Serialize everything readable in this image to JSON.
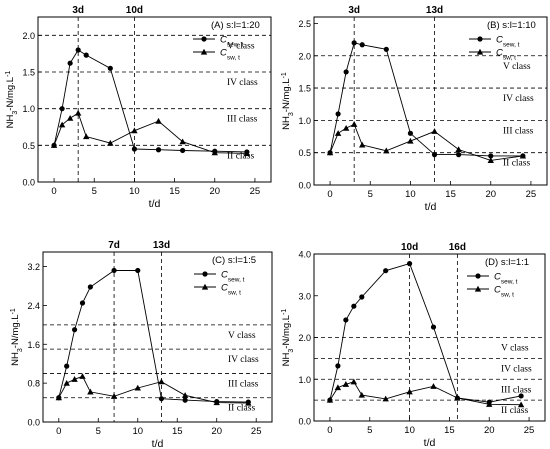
{
  "chart_data": [
    {
      "type": "line",
      "panel_label": "(A) s:l=1:20",
      "xlabel": "t/d",
      "ylabel": "NH",
      "ylabel_sub": "3",
      "ylabel_rest": "-N/mg.L",
      "ylabel_sup": "-1",
      "xlim": [
        -2,
        27
      ],
      "ylim": [
        0,
        2.25
      ],
      "xticks": [
        0,
        5,
        10,
        15,
        20,
        25
      ],
      "yticks": [
        0.0,
        0.5,
        1.0,
        1.5,
        2.0
      ],
      "ytick_labels": [
        "0.0",
        "0.5",
        "1.0",
        "1.5",
        "2.0"
      ],
      "vlines": [
        {
          "x": 3,
          "label": "3d"
        },
        {
          "x": 10,
          "label": "10d"
        }
      ],
      "hlines": [
        {
          "y": 2.0,
          "label": "V  class"
        },
        {
          "y": 1.5,
          "label": "IV class"
        },
        {
          "y": 1.0,
          "label": "III class"
        },
        {
          "y": 0.5,
          "label": "II  class"
        }
      ],
      "legend": [
        {
          "name": "C",
          "sub": "sew, t",
          "marker": "circle"
        },
        {
          "name": "C",
          "sub": "sw, t",
          "marker": "triangle"
        }
      ],
      "series": [
        {
          "name": "C_sew,t",
          "marker": "circle",
          "x": [
            0,
            1,
            2,
            3,
            4,
            7,
            10,
            13,
            16,
            20,
            24
          ],
          "y": [
            0.5,
            1.0,
            1.62,
            1.8,
            1.73,
            1.55,
            0.45,
            0.44,
            0.43,
            0.42,
            0.41
          ]
        },
        {
          "name": "C_sw,t",
          "marker": "triangle",
          "x": [
            0,
            1,
            2,
            3,
            4,
            7,
            10,
            13,
            16,
            20,
            24
          ],
          "y": [
            0.5,
            0.78,
            0.87,
            0.94,
            0.62,
            0.53,
            0.7,
            0.83,
            0.55,
            0.4,
            0.39
          ]
        }
      ]
    },
    {
      "type": "line",
      "panel_label": "(B) s:l=1:10",
      "xlabel": "t/d",
      "ylabel": "NH",
      "ylabel_sub": "3",
      "ylabel_rest": "-N/mg.L",
      "ylabel_sup": "-1",
      "xlim": [
        -2,
        27
      ],
      "ylim": [
        0,
        2.6
      ],
      "xticks": [
        0,
        5,
        10,
        15,
        20,
        25
      ],
      "yticks": [
        0.0,
        0.5,
        1.0,
        1.5,
        2.0,
        2.5
      ],
      "ytick_labels": [
        "0.0",
        "0.5",
        "1.0",
        "1.5",
        "2.0",
        "2.5"
      ],
      "vlines": [
        {
          "x": 3,
          "label": "3d"
        },
        {
          "x": 13,
          "label": "13d"
        }
      ],
      "hlines": [
        {
          "y": 2.0,
          "label": "V  class"
        },
        {
          "y": 1.5,
          "label": "IV class"
        },
        {
          "y": 1.0,
          "label": "III class"
        },
        {
          "y": 0.5,
          "label": "II  class"
        }
      ],
      "legend": [
        {
          "name": "C",
          "sub": "sew, t",
          "marker": "circle"
        },
        {
          "name": "C",
          "sub": "sw, t",
          "marker": "triangle"
        }
      ],
      "series": [
        {
          "name": "C_sew,t",
          "marker": "circle",
          "x": [
            0,
            1,
            2,
            3,
            4,
            7,
            10,
            13,
            16,
            20,
            24
          ],
          "y": [
            0.5,
            1.1,
            1.75,
            2.2,
            2.17,
            2.1,
            0.8,
            0.47,
            0.47,
            0.45,
            0.45
          ]
        },
        {
          "name": "C_sw,t",
          "marker": "triangle",
          "x": [
            0,
            1,
            2,
            3,
            4,
            7,
            10,
            13,
            16,
            20,
            24
          ],
          "y": [
            0.5,
            0.8,
            0.88,
            0.94,
            0.62,
            0.53,
            0.68,
            0.83,
            0.55,
            0.38,
            0.45
          ]
        }
      ]
    },
    {
      "type": "line",
      "panel_label": "(C) s:l=1:5",
      "xlabel": "t/d",
      "ylabel": "NH",
      "ylabel_sub": "3",
      "ylabel_rest": "-N/mg.L",
      "ylabel_sup": "-1",
      "xlim": [
        -2,
        27
      ],
      "ylim": [
        0,
        3.5
      ],
      "xticks": [
        0,
        5,
        10,
        15,
        20,
        25
      ],
      "yticks": [
        0.0,
        0.8,
        1.6,
        2.4,
        3.2
      ],
      "ytick_labels": [
        "0.0",
        "0.8",
        "1.6",
        "2.4",
        "3.2"
      ],
      "vlines": [
        {
          "x": 7,
          "label": "7d"
        },
        {
          "x": 13,
          "label": "13d"
        }
      ],
      "hlines": [
        {
          "y": 2.0,
          "label": "V  class"
        },
        {
          "y": 1.5,
          "label": "IV class"
        },
        {
          "y": 1.0,
          "label": "III class"
        },
        {
          "y": 0.5,
          "label": "II  class"
        }
      ],
      "legend": [
        {
          "name": "C",
          "sub": "sew, t",
          "marker": "circle"
        },
        {
          "name": "C",
          "sub": "sw, t",
          "marker": "triangle"
        }
      ],
      "series": [
        {
          "name": "C_sew,t",
          "marker": "circle",
          "x": [
            0,
            1,
            2,
            3,
            4,
            7,
            10,
            13,
            16,
            20,
            24
          ],
          "y": [
            0.5,
            1.15,
            1.9,
            2.45,
            2.78,
            3.12,
            3.12,
            0.48,
            0.45,
            0.42,
            0.41
          ]
        },
        {
          "name": "C_sw,t",
          "marker": "triangle",
          "x": [
            0,
            1,
            2,
            3,
            4,
            7,
            10,
            13,
            16,
            20,
            24
          ],
          "y": [
            0.5,
            0.8,
            0.88,
            0.94,
            0.62,
            0.53,
            0.7,
            0.83,
            0.55,
            0.4,
            0.39
          ]
        }
      ]
    },
    {
      "type": "line",
      "panel_label": "(D) s:l=1:1",
      "xlabel": "t/d",
      "ylabel": "NH",
      "ylabel_sub": "3",
      "ylabel_rest": "-N/mg.L",
      "ylabel_sup": "-1",
      "xlim": [
        -2,
        27
      ],
      "ylim": [
        0,
        4.0
      ],
      "xticks": [
        0,
        5,
        10,
        15,
        20,
        25
      ],
      "yticks": [
        0.0,
        1.0,
        2.0,
        3.0,
        4.0
      ],
      "ytick_labels": [
        "0.0",
        "1.0",
        "2.0",
        "3.0",
        "4.0"
      ],
      "vlines": [
        {
          "x": 10,
          "label": "10d"
        },
        {
          "x": 16,
          "label": "16d"
        }
      ],
      "hlines": [
        {
          "y": 2.0,
          "label": "V  class"
        },
        {
          "y": 1.5,
          "label": "IV class"
        },
        {
          "y": 1.0,
          "label": "III class"
        },
        {
          "y": 0.5,
          "label": "II  class"
        }
      ],
      "legend": [
        {
          "name": "C",
          "sub": "sew, t",
          "marker": "circle"
        },
        {
          "name": "C",
          "sub": "sw, t",
          "marker": "triangle"
        }
      ],
      "series": [
        {
          "name": "C_sew,t",
          "marker": "circle",
          "x": [
            0,
            1,
            2,
            3,
            4,
            7,
            10,
            13,
            16,
            20,
            24
          ],
          "y": [
            0.5,
            1.32,
            2.42,
            2.75,
            2.97,
            3.6,
            3.77,
            2.25,
            0.55,
            0.45,
            0.6
          ]
        },
        {
          "name": "C_sw,t",
          "marker": "triangle",
          "x": [
            0,
            1,
            2,
            3,
            4,
            7,
            10,
            13,
            16,
            20,
            24
          ],
          "y": [
            0.5,
            0.8,
            0.88,
            0.94,
            0.62,
            0.53,
            0.7,
            0.83,
            0.55,
            0.4,
            0.39
          ]
        }
      ]
    }
  ]
}
